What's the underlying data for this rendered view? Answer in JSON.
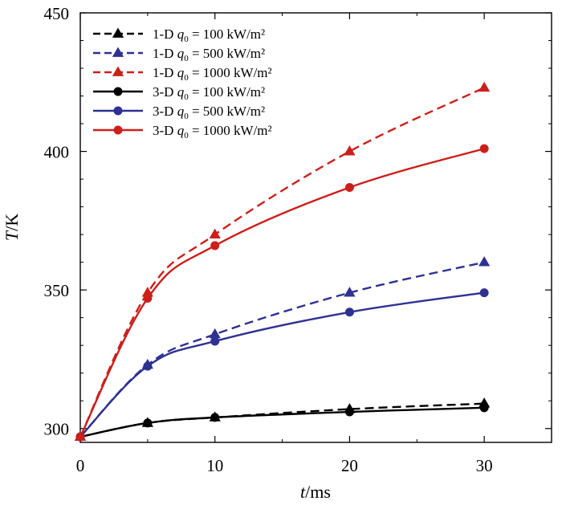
{
  "chart_data": {
    "type": "line",
    "xlabel": "t/ms",
    "ylabel": "T/K",
    "xlim": [
      0,
      35
    ],
    "ylim": [
      295,
      450
    ],
    "xticks": [
      0,
      10,
      20,
      30
    ],
    "yticks": [
      300,
      350,
      400,
      450
    ],
    "legend_position": "top-left",
    "legend_unit": "kW/m²",
    "series": [
      {
        "name": "1-D q0 = 100 kW/m2",
        "dim": "1-D",
        "q0": "100",
        "style": "dashed",
        "marker": "triangle",
        "color": "#000000",
        "x": [
          0,
          5,
          10,
          20,
          30
        ],
        "y": [
          297,
          302,
          304,
          307,
          309
        ]
      },
      {
        "name": "1-D q0 = 500 kW/m2",
        "dim": "1-D",
        "q0": "500",
        "style": "dashed",
        "marker": "triangle",
        "color": "#2e3192",
        "x": [
          0,
          5,
          10,
          20,
          30
        ],
        "y": [
          297,
          323,
          334,
          349,
          360
        ]
      },
      {
        "name": "1-D q0 = 1000 kW/m2",
        "dim": "1-D",
        "q0": "1000",
        "style": "dashed",
        "marker": "triangle",
        "color": "#cc1f1a",
        "x": [
          0,
          5,
          10,
          20,
          30
        ],
        "y": [
          297,
          349,
          370,
          400,
          423
        ]
      },
      {
        "name": "3-D q0 = 100 kW/m2",
        "dim": "3-D",
        "q0": "100",
        "style": "solid",
        "marker": "circle",
        "color": "#000000",
        "x": [
          0,
          5,
          10,
          20,
          30
        ],
        "y": [
          297,
          302,
          304,
          306,
          307.5
        ]
      },
      {
        "name": "3-D q0 = 500 kW/m2",
        "dim": "3-D",
        "q0": "500",
        "style": "solid",
        "marker": "circle",
        "color": "#2e3192",
        "x": [
          0,
          5,
          10,
          20,
          30
        ],
        "y": [
          297,
          322.5,
          331.5,
          342,
          349
        ]
      },
      {
        "name": "3-D q0 = 1000 kW/m2",
        "dim": "3-D",
        "q0": "1000",
        "style": "solid",
        "marker": "circle",
        "color": "#cc1f1a",
        "x": [
          0,
          5,
          10,
          20,
          30
        ],
        "y": [
          297,
          347,
          366,
          387,
          401
        ]
      }
    ]
  }
}
